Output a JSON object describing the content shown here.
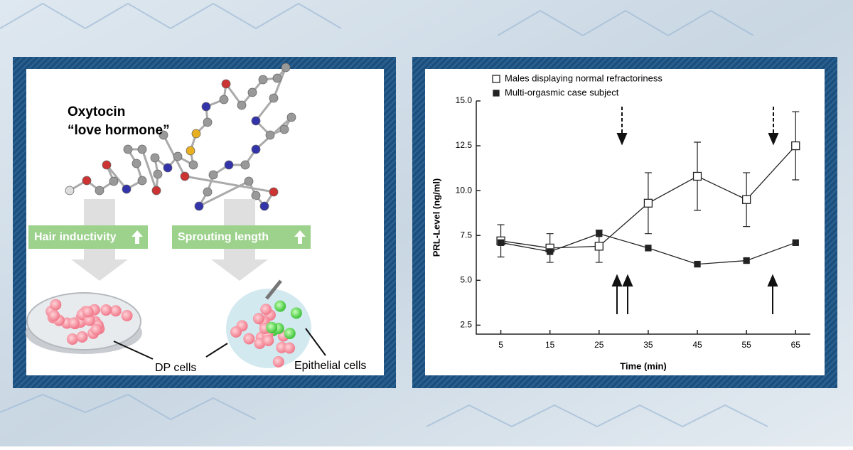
{
  "diagram": {
    "title": "Oxytocin",
    "subtitle": "“love hormone”",
    "left_label": "Hair inductivity",
    "right_label": "Sprouting length",
    "dish_label": "DP cells",
    "cluster_label": "Epithelial cells"
  },
  "chart_data": {
    "type": "line",
    "xlabel": "Time (min)",
    "ylabel": "PRL-Level (ng/ml)",
    "x": [
      5,
      15,
      25,
      35,
      45,
      55,
      65
    ],
    "series": [
      {
        "name": "Males displaying normal refractoriness",
        "color": "#222222",
        "marker": "open-square",
        "values": [
          7.2,
          6.8,
          6.9,
          9.3,
          10.8,
          9.5,
          12.5
        ],
        "error": [
          0.9,
          0.8,
          0.9,
          1.7,
          1.9,
          1.5,
          1.9
        ]
      },
      {
        "name": "Multi-orgasmic case subject",
        "color": "#222222",
        "marker": "filled-square",
        "values": [
          7.1,
          6.6,
          7.6,
          6.8,
          5.9,
          6.1,
          7.1
        ]
      }
    ],
    "xlim": [
      0,
      68
    ],
    "ylim": [
      2,
      15
    ],
    "xticks": [
      5,
      15,
      25,
      35,
      45,
      55,
      65
    ],
    "yticks": [
      2.5,
      {
        "value": 5,
        "label": "5.0"
      },
      7.5,
      {
        "value": 10,
        "label": "10.0"
      },
      12.5,
      {
        "value": 15,
        "label": "15.0"
      }
    ],
    "legend": "upper-left",
    "grid": false
  }
}
